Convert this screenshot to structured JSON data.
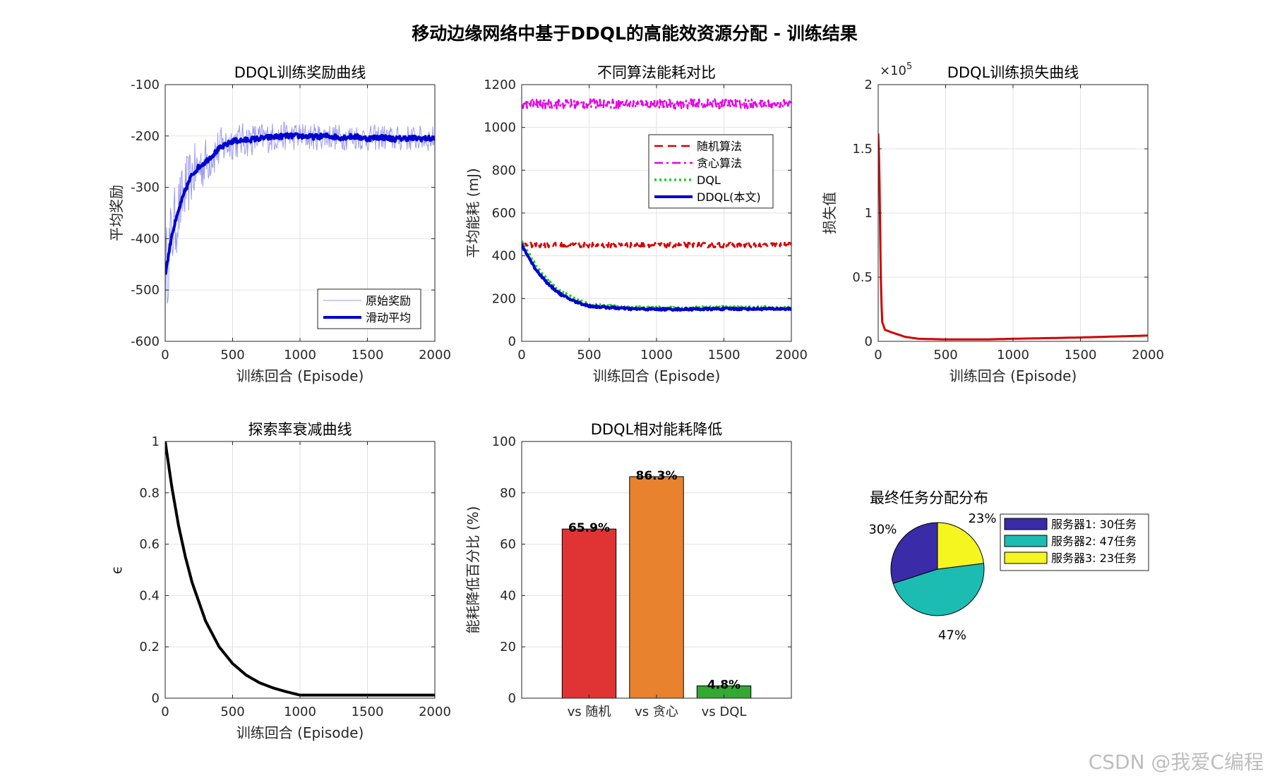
{
  "figure": {
    "suptitle": "移动边缘网络中基于DDQL的高能效资源分配 - 训练结果",
    "watermark": "CSDN @我爱C编程"
  },
  "chart_data": [
    {
      "id": "reward",
      "type": "line",
      "title": "DDQL训练奖励曲线",
      "xlabel": "训练回合 (Episode)",
      "ylabel": "平均奖励",
      "xlim": [
        0,
        2000
      ],
      "ylim": [
        -600,
        -100
      ],
      "xticks": [
        0,
        500,
        1000,
        1500,
        2000
      ],
      "yticks": [
        -100,
        -200,
        -300,
        -400,
        -500,
        -600
      ],
      "grid": true,
      "legend_position": "bottom-right",
      "series": [
        {
          "name": "原始奖励",
          "color": "#9a9aee",
          "style": "thin",
          "noise": 25,
          "x": [
            0,
            20,
            50,
            80,
            100,
            150,
            200,
            250,
            300,
            400,
            500,
            600,
            700,
            800,
            900,
            1000,
            1100,
            1200,
            1300,
            1400,
            1500,
            1600,
            1700,
            1800,
            1900,
            2000
          ],
          "y": [
            -470,
            -440,
            -390,
            -365,
            -345,
            -305,
            -275,
            -260,
            -250,
            -225,
            -210,
            -208,
            -205,
            -202,
            -200,
            -200,
            -202,
            -200,
            -203,
            -201,
            -205,
            -202,
            -206,
            -204,
            -205,
            -205
          ]
        },
        {
          "name": "滑动平均",
          "color": "#0000d0",
          "style": "thick",
          "noise": 5,
          "x": [
            0,
            20,
            50,
            80,
            100,
            150,
            200,
            250,
            300,
            400,
            500,
            600,
            700,
            800,
            900,
            1000,
            1100,
            1200,
            1300,
            1400,
            1500,
            1600,
            1700,
            1800,
            1900,
            2000
          ],
          "y": [
            -470,
            -440,
            -390,
            -365,
            -345,
            -305,
            -275,
            -260,
            -250,
            -225,
            -210,
            -208,
            -205,
            -202,
            -200,
            -200,
            -202,
            -200,
            -203,
            -201,
            -205,
            -202,
            -206,
            -204,
            -205,
            -205
          ]
        }
      ]
    },
    {
      "id": "energy",
      "type": "line",
      "title": "不同算法能耗对比",
      "xlabel": "训练回合 (Episode)",
      "ylabel": "平均能耗 (mJ)",
      "xlim": [
        0,
        2000
      ],
      "ylim": [
        0,
        1200
      ],
      "xticks": [
        0,
        500,
        1000,
        1500,
        2000
      ],
      "yticks": [
        0,
        200,
        400,
        600,
        800,
        1000,
        1200
      ],
      "grid": true,
      "legend_position": "top-right",
      "series": [
        {
          "name": "随机算法",
          "color": "#d40000",
          "style": "dashed",
          "noise": 12,
          "x": [
            0,
            2000
          ],
          "y": [
            450,
            450
          ]
        },
        {
          "name": "贪心算法",
          "color": "#e600e6",
          "style": "dashdot",
          "noise": 22,
          "x": [
            0,
            2000
          ],
          "y": [
            1110,
            1110
          ]
        },
        {
          "name": "DQL",
          "color": "#1ecf1e",
          "style": "dotted",
          "noise": 4,
          "x": [
            0,
            100,
            200,
            300,
            400,
            500,
            600,
            800,
            1000,
            1200,
            1500,
            1800,
            2000
          ],
          "y": [
            470,
            360,
            280,
            230,
            200,
            175,
            168,
            160,
            158,
            158,
            160,
            160,
            158
          ]
        },
        {
          "name": "DDQL(本文)",
          "color": "#0000d0",
          "style": "thick",
          "noise": 5,
          "x": [
            0,
            100,
            200,
            300,
            400,
            500,
            600,
            800,
            1000,
            1200,
            1500,
            1800,
            2000
          ],
          "y": [
            450,
            340,
            265,
            215,
            185,
            165,
            160,
            152,
            150,
            150,
            152,
            152,
            152
          ]
        }
      ]
    },
    {
      "id": "loss",
      "type": "line",
      "title": "DDQL训练损失曲线",
      "xlabel": "训练回合 (Episode)",
      "ylabel": "损失值",
      "exponent_label": "×10",
      "exponent_power": "5",
      "xlim": [
        0,
        2000
      ],
      "ylim": [
        0,
        2
      ],
      "xticks": [
        0,
        500,
        1000,
        1500,
        2000
      ],
      "yticks": [
        0,
        0.5,
        1,
        1.5,
        2
      ],
      "grid": true,
      "series": [
        {
          "name": "",
          "color": "#d40000",
          "style": "medium",
          "noise": 0,
          "x": [
            0,
            8,
            15,
            22,
            30,
            50,
            100,
            200,
            300,
            500,
            800,
            1000,
            1500,
            2000
          ],
          "y": [
            1.62,
            1.4,
            0.8,
            0.35,
            0.15,
            0.09,
            0.07,
            0.035,
            0.02,
            0.015,
            0.015,
            0.02,
            0.03,
            0.045
          ]
        }
      ]
    },
    {
      "id": "epsilon",
      "type": "line",
      "title": "探索率衰减曲线",
      "xlabel": "训练回合 (Episode)",
      "ylabel": "ϵ",
      "xlim": [
        0,
        2000
      ],
      "ylim": [
        0,
        1
      ],
      "xticks": [
        0,
        500,
        1000,
        1500,
        2000
      ],
      "yticks": [
        0,
        0.2,
        0.4,
        0.6,
        0.8,
        1
      ],
      "grid": true,
      "series": [
        {
          "name": "",
          "color": "#000000",
          "style": "thick",
          "noise": 0,
          "x": [
            0,
            50,
            100,
            150,
            200,
            300,
            400,
            500,
            600,
            700,
            800,
            900,
            1000,
            1500,
            2000
          ],
          "y": [
            1.0,
            0.82,
            0.67,
            0.55,
            0.45,
            0.3,
            0.2,
            0.135,
            0.09,
            0.06,
            0.04,
            0.025,
            0.012,
            0.012,
            0.012
          ]
        }
      ]
    },
    {
      "id": "reduction",
      "type": "bar",
      "title": "DDQL相对能耗降低",
      "xlabel": "",
      "ylabel": "能耗降低百分比 (%)",
      "ylim": [
        0,
        100
      ],
      "yticks": [
        0,
        20,
        40,
        60,
        80,
        100
      ],
      "grid": true,
      "categories": [
        "vs 随机",
        "vs 贪心",
        "vs DQL"
      ],
      "values": [
        65.9,
        86.3,
        4.8
      ],
      "labels": [
        "65.9%",
        "86.3%",
        "4.8%"
      ],
      "colors": [
        "#e03333",
        "#e8822f",
        "#33a833"
      ]
    },
    {
      "id": "allocation",
      "type": "pie",
      "title": "最终任务分配分布",
      "slices": [
        {
          "label": "服务器1: 30任务",
          "value": 30,
          "percent_label": "30%",
          "color": "#3a2ba8"
        },
        {
          "label": "服务器2: 47任务",
          "value": 47,
          "percent_label": "47%",
          "color": "#1dbcb2"
        },
        {
          "label": "服务器3: 23任务",
          "value": 23,
          "percent_label": "23%",
          "color": "#f5f520"
        }
      ],
      "legend_position": "right"
    }
  ]
}
